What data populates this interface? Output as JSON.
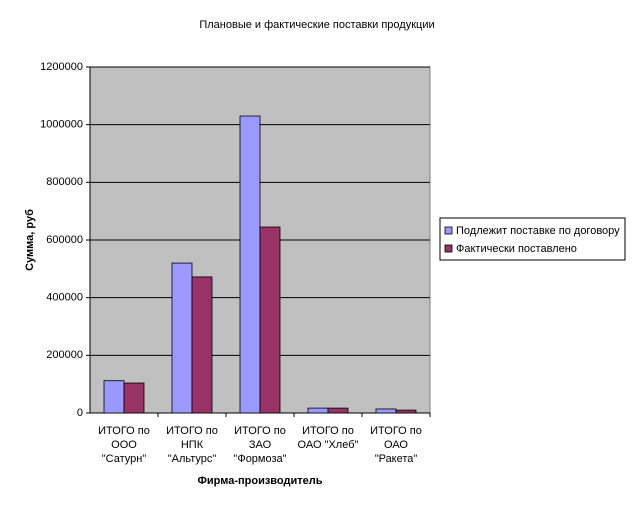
{
  "chart_data": {
    "type": "bar",
    "title": "Плановые и фактические поставки продукции",
    "x_label": "Фирма-производитель",
    "y_label": "Сумма, руб",
    "categories": [
      "ИТОГО по ООО \"Сатурн\"",
      "ИТОГО по НПК \"Альтурс\"",
      "ИТОГО по ЗАО \"Формоза\"",
      "ИТОГО по ОАО \"Хлеб\"",
      "ИТОГО по ОАО \"Ракета\""
    ],
    "series": [
      {
        "name": "Подлежит поставке по договору",
        "color": "#9999ff",
        "values": [
          112000,
          520000,
          1030000,
          17000,
          14000
        ]
      },
      {
        "name": "Фактически поставлено",
        "color": "#993366",
        "values": [
          104000,
          472000,
          645000,
          17000,
          10000
        ]
      }
    ],
    "ylim": [
      0,
      1200000
    ],
    "yticks": [
      0,
      200000,
      400000,
      600000,
      800000,
      1000000,
      1200000
    ],
    "grid": true,
    "legend": "right"
  }
}
